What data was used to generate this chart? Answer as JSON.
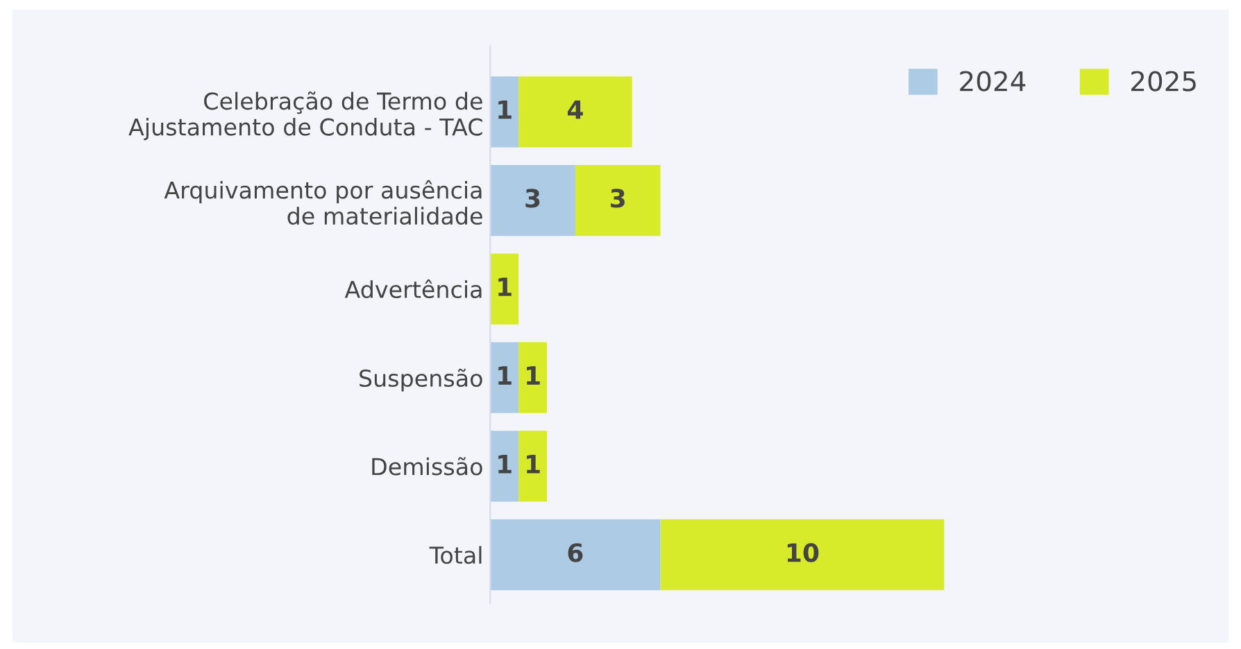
{
  "chart_data": {
    "type": "bar",
    "orientation": "horizontal",
    "stacked": true,
    "categories": [
      "Celebração de Termo de\nAjustamento de Conduta - TAC",
      "Arquivamento por ausência\nde materialidade",
      "Advertência",
      "Suspensão",
      "Demissão",
      "Total"
    ],
    "series": [
      {
        "name": "2024",
        "color": "#aecbe6",
        "values": [
          1,
          3,
          null,
          1,
          1,
          6
        ]
      },
      {
        "name": "2025",
        "color": "#d8eb2a",
        "values": [
          4,
          3,
          1,
          1,
          1,
          10
        ]
      }
    ],
    "data_labels": true,
    "legend": "top right",
    "grid": false,
    "tick_labels": "y"
  }
}
